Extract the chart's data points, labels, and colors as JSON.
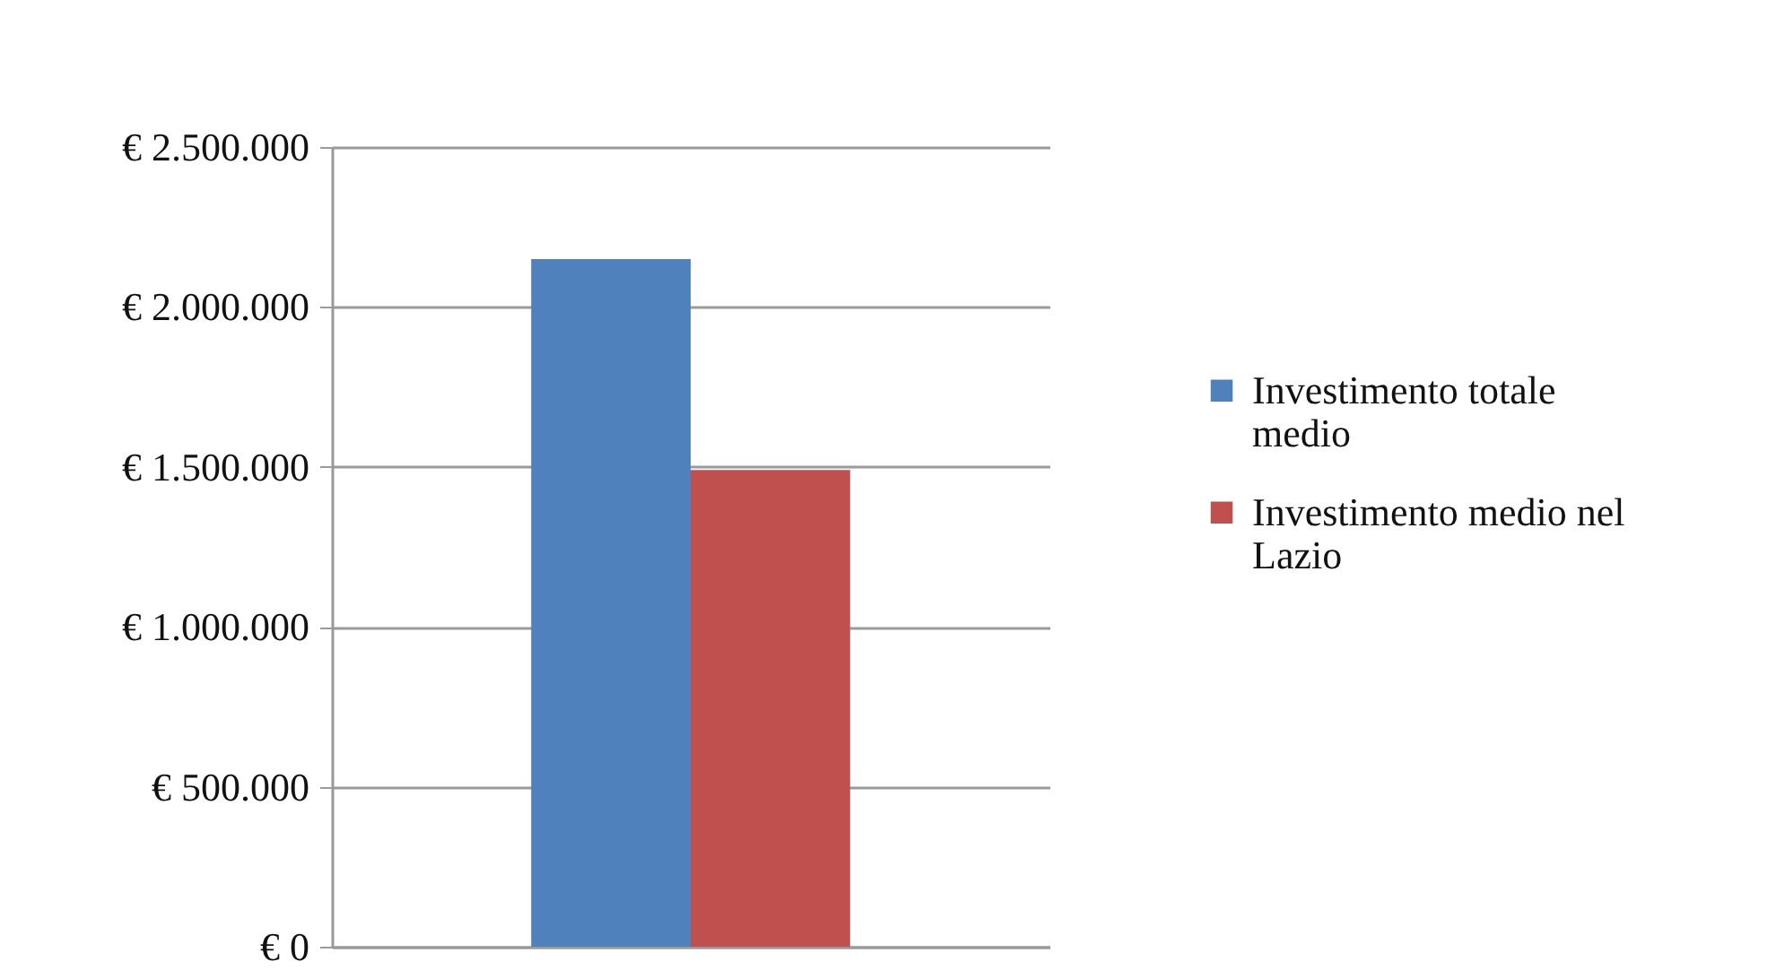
{
  "chart_data": {
    "type": "bar",
    "categories": [
      null
    ],
    "series": [
      {
        "name": "Investimento totale medio",
        "color": "#4f81bd",
        "values": [
          2150000
        ]
      },
      {
        "name": "Investimento medio nel Lazio",
        "color": "#c0504d",
        "values": [
          1490000
        ]
      }
    ],
    "ylim": [
      0,
      2500000
    ],
    "yticks": [
      {
        "value": 0,
        "label": "€ 0"
      },
      {
        "value": 500000,
        "label": "€ 500.000"
      },
      {
        "value": 1000000,
        "label": "€ 1.000.000"
      },
      {
        "value": 1500000,
        "label": "€ 1.500.000"
      },
      {
        "value": 2000000,
        "label": "€ 2.000.000"
      },
      {
        "value": 2500000,
        "label": "€ 2.500.000"
      }
    ],
    "grid": "y",
    "legend": "right",
    "tick_labels": "y"
  }
}
